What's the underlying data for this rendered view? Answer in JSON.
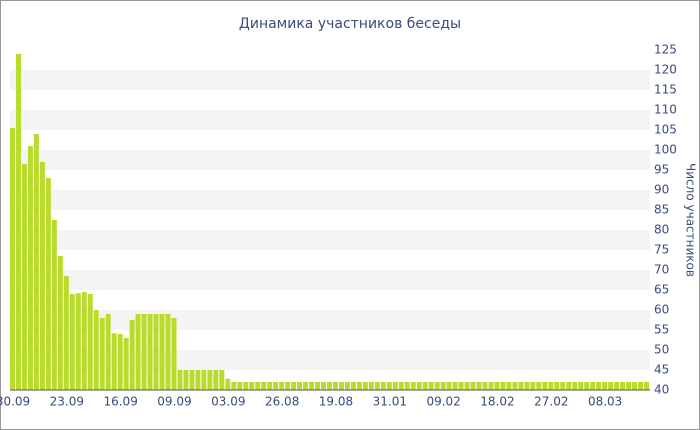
{
  "chart_data": {
    "type": "bar",
    "title": "Динамика участников беседы",
    "y_label": "Число участников",
    "categories": [
      "30.09",
      null,
      null,
      null,
      null,
      null,
      null,
      null,
      null,
      "23.09",
      null,
      null,
      null,
      null,
      null,
      null,
      null,
      null,
      "16.09",
      null,
      null,
      null,
      null,
      null,
      null,
      null,
      null,
      "09.09",
      null,
      null,
      null,
      null,
      null,
      null,
      null,
      null,
      "03.09",
      null,
      null,
      null,
      null,
      null,
      null,
      null,
      null,
      "26.08",
      null,
      null,
      null,
      null,
      null,
      null,
      null,
      null,
      "19.08",
      null,
      null,
      null,
      null,
      null,
      null,
      null,
      null,
      "31.01",
      null,
      null,
      null,
      null,
      null,
      null,
      null,
      null,
      "09.02",
      null,
      null,
      null,
      null,
      null,
      null,
      null,
      null,
      "18.02",
      null,
      null,
      null,
      null,
      null,
      null,
      null,
      null,
      "27.02",
      null,
      null,
      null,
      null,
      null,
      null,
      null,
      null,
      "08.03",
      null,
      null,
      null,
      null,
      null,
      null,
      null
    ],
    "values": [
      105.5,
      124,
      96.5,
      101,
      104,
      97,
      93,
      82.5,
      73.5,
      68.5,
      64,
      64.2,
      64.5,
      64,
      60,
      58,
      59,
      54.2,
      54,
      53,
      57.5,
      59,
      59,
      59,
      59,
      59,
      59,
      58,
      45,
      45,
      45,
      45,
      45,
      45,
      45,
      45,
      42.8,
      42,
      42,
      42,
      42,
      42,
      42,
      42,
      42,
      42,
      42,
      42,
      42,
      42,
      42,
      42,
      42,
      42,
      42,
      42,
      42,
      42,
      42,
      42,
      42,
      42,
      42,
      42,
      42,
      42,
      42,
      42,
      42,
      42,
      42,
      42,
      42,
      42,
      42,
      42,
      42,
      42,
      42,
      42,
      42,
      42,
      42,
      42,
      42,
      42,
      42,
      42,
      42,
      42,
      42,
      42,
      42,
      42,
      42,
      42,
      42,
      42,
      42,
      42,
      42,
      42,
      42,
      42,
      42,
      42,
      42
    ],
    "color": "#b8dc2c",
    "ylim": [
      40,
      125
    ],
    "yticks": [
      40,
      45,
      50,
      55,
      60,
      65,
      70,
      75,
      80,
      85,
      90,
      95,
      100,
      105,
      110,
      115,
      120,
      125
    ],
    "grid": "bands",
    "y_axis_side": "right"
  }
}
